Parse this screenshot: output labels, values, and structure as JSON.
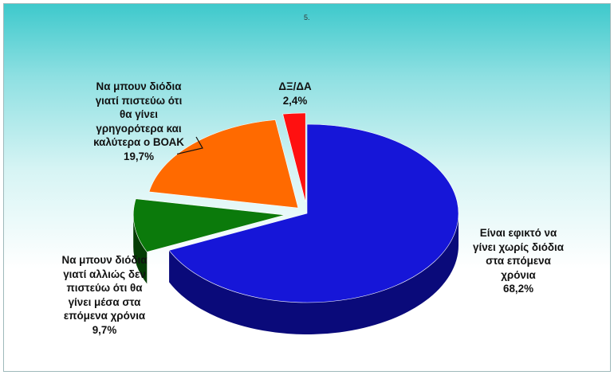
{
  "page_number": "5.",
  "chart_data": {
    "type": "pie",
    "style": "3d-exploded",
    "slices": [
      {
        "id": "blue",
        "label_lines": [
          "Είναι εφικτό να",
          "γίνει χωρίς διόδια",
          "στα επόμενα",
          "χρόνια"
        ],
        "value": 68.2,
        "value_text": "68,2%",
        "color": "#1616d8",
        "side_color": "#0a0a7a"
      },
      {
        "id": "green",
        "label_lines": [
          "Να μπουν διόδια",
          "γιατί  αλλιώς δεν",
          "πιστεύω ότι θα",
          "γίνει μέσα στα",
          "επόμενα χρόνια"
        ],
        "value": 9.7,
        "value_text": "9,7%",
        "color": "#0b7a0b",
        "side_color": "#053d05"
      },
      {
        "id": "orange",
        "label_lines": [
          "Να μπουν διόδια",
          "γιατί πιστεύω ότι",
          "θα γίνει",
          "γρηγορότερα και",
          "καλύτερα ο ΒΟΑΚ"
        ],
        "value": 19.7,
        "value_text": "19,7%",
        "color": "#ff6a00",
        "side_color": "#8a3600"
      },
      {
        "id": "red",
        "label_lines": [
          "ΔΞ/ΔΑ"
        ],
        "value": 2.4,
        "value_text": "2,4%",
        "color": "#ff1010",
        "side_color": "#8a0000"
      }
    ]
  }
}
